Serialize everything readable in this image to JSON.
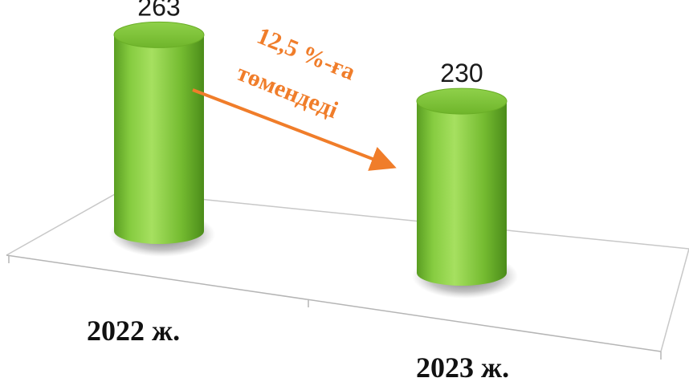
{
  "chart_data": {
    "type": "bar",
    "style": "3d-cylinder",
    "categories": [
      "2022 ж.",
      "2023 ж."
    ],
    "values": [
      263,
      230
    ],
    "bar_color": "#7dc53a",
    "annotation": {
      "line1": "12,5 %-ға",
      "line2": "төмендеді",
      "color": "#f07d2a"
    },
    "grid": false,
    "legend": "none"
  }
}
